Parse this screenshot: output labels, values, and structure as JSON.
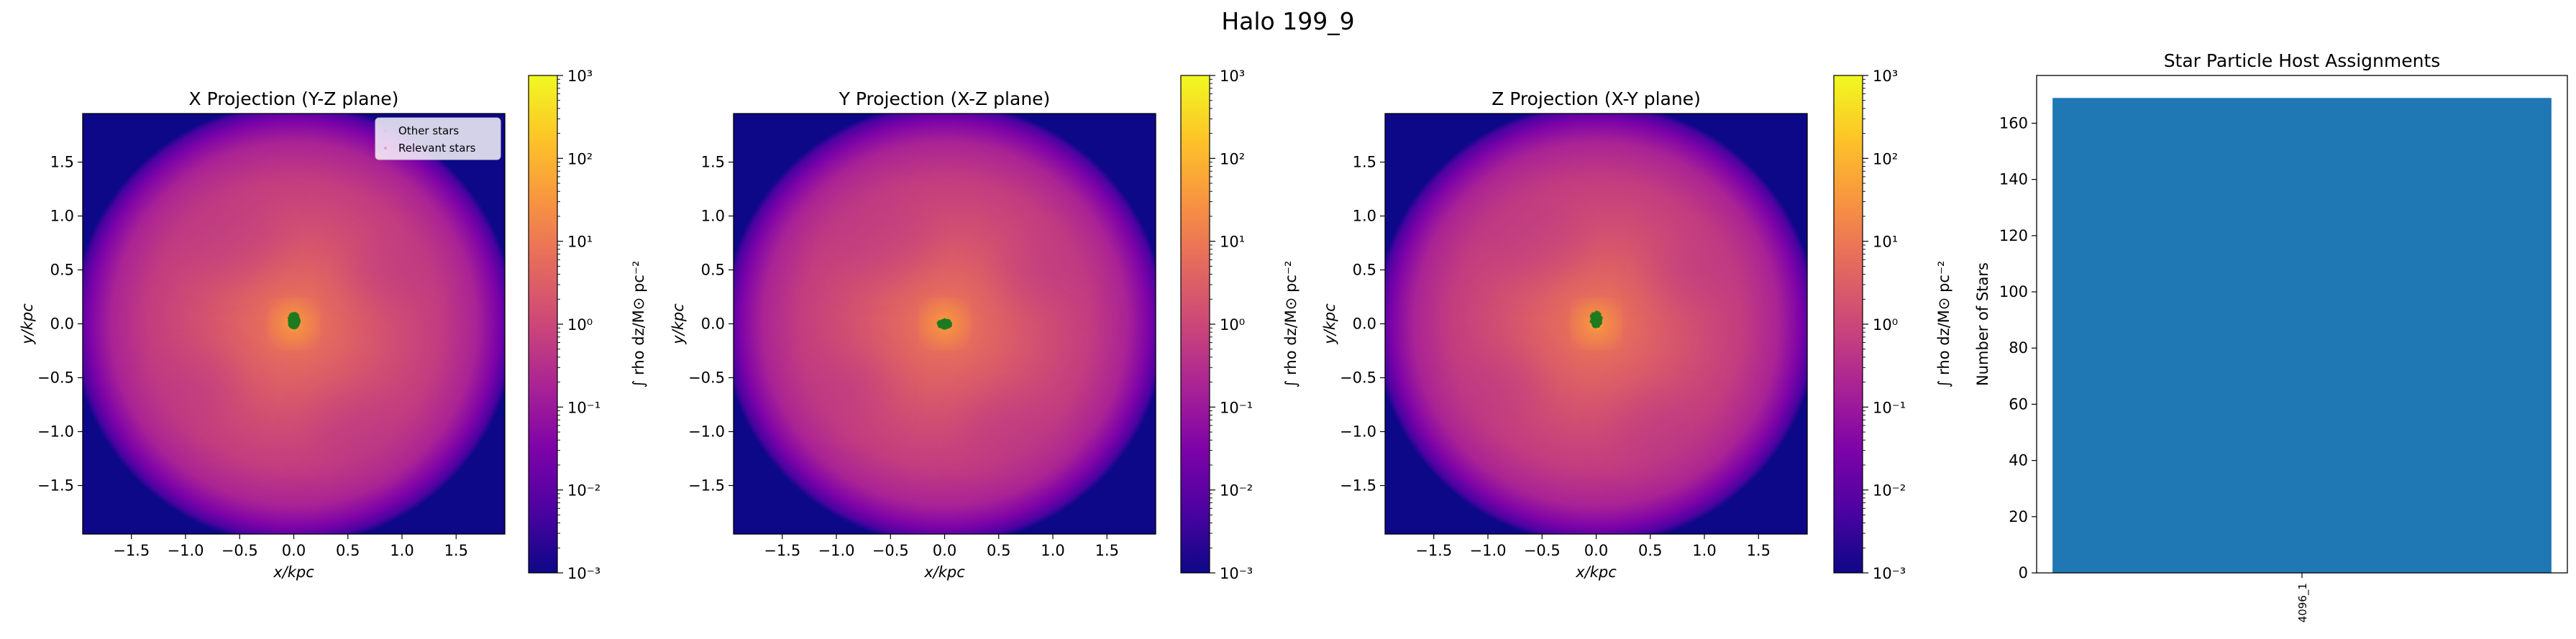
{
  "figure": {
    "suptitle": "Halo 199_9"
  },
  "colors": {
    "magma_stops": [
      "#0d0887",
      "#4c02a1",
      "#7e03a8",
      "#a92395",
      "#cc4778",
      "#e56b5d",
      "#f89540",
      "#fdc527",
      "#f0f921"
    ],
    "star_relevant": "#1f7a1f",
    "bar": "#1f77b4"
  },
  "chart_data": [
    {
      "type": "heatmap",
      "title": "X Projection (Y-Z plane)",
      "xlabel": "x/kpc",
      "ylabel": "y/kpc",
      "xlim": [
        -1.95,
        1.95
      ],
      "ylim": [
        -1.95,
        1.95
      ],
      "xticks": [
        "-1.5",
        "-1.0",
        "-0.5",
        "0.0",
        "0.5",
        "1.0",
        "1.5"
      ],
      "yticks": [
        "-1.5",
        "-1.0",
        "-0.5",
        "0.0",
        "0.5",
        "1.0",
        "1.5"
      ],
      "colorbar": {
        "label": "∫ rho dz/M⊙ pc⁻²",
        "scale": "log",
        "range": [
          0.001,
          1000
        ],
        "ticks": [
          "10⁻³",
          "10⁻²",
          "10⁻¹",
          "10⁰",
          "10¹",
          "10²",
          "10³"
        ]
      },
      "legend": {
        "placement": "top-right",
        "entries": [
          "Other stars",
          "Relevant stars"
        ]
      },
      "stars": {
        "center": [
          0.0,
          0.03
        ],
        "spread": [
          0.05,
          0.07
        ]
      }
    },
    {
      "type": "heatmap",
      "title": "Y Projection (X-Z plane)",
      "xlabel": "x/kpc",
      "ylabel": "y/kpc",
      "xlim": [
        -1.95,
        1.95
      ],
      "ylim": [
        -1.95,
        1.95
      ],
      "xticks": [
        "-1.5",
        "-1.0",
        "-0.5",
        "0.0",
        "0.5",
        "1.0",
        "1.5"
      ],
      "yticks": [
        "-1.5",
        "-1.0",
        "-0.5",
        "0.0",
        "0.5",
        "1.0",
        "1.5"
      ],
      "colorbar": {
        "label": "∫ rho dz/M⊙ pc⁻²",
        "scale": "log",
        "range": [
          0.001,
          1000
        ],
        "ticks": [
          "10⁻³",
          "10⁻²",
          "10⁻¹",
          "10⁰",
          "10¹",
          "10²",
          "10³"
        ]
      },
      "stars": {
        "center": [
          0.0,
          0.0
        ],
        "spread": [
          0.06,
          0.04
        ]
      }
    },
    {
      "type": "heatmap",
      "title": "Z Projection (X-Y plane)",
      "xlabel": "x/kpc",
      "ylabel": "y/kpc",
      "xlim": [
        -1.95,
        1.95
      ],
      "ylim": [
        -1.95,
        1.95
      ],
      "xticks": [
        "-1.5",
        "-1.0",
        "-0.5",
        "0.0",
        "0.5",
        "1.0",
        "1.5"
      ],
      "yticks": [
        "-1.5",
        "-1.0",
        "-0.5",
        "0.0",
        "0.5",
        "1.0",
        "1.5"
      ],
      "colorbar": {
        "label": "∫ rho dz/M⊙ pc⁻²",
        "scale": "log",
        "range": [
          0.001,
          1000
        ],
        "ticks": [
          "10⁻³",
          "10⁻²",
          "10⁻¹",
          "10⁰",
          "10¹",
          "10²",
          "10³"
        ]
      },
      "stars": {
        "center": [
          0.0,
          0.04
        ],
        "spread": [
          0.05,
          0.07
        ]
      }
    },
    {
      "type": "bar",
      "title": "Star Particle Host Assignments",
      "xlabel": "",
      "ylabel": "Number of Stars",
      "categories": [
        "4096_1"
      ],
      "values": [
        169
      ],
      "ylim": [
        0,
        177
      ],
      "yticks": [
        0,
        20,
        40,
        60,
        80,
        100,
        120,
        140,
        160
      ]
    }
  ]
}
